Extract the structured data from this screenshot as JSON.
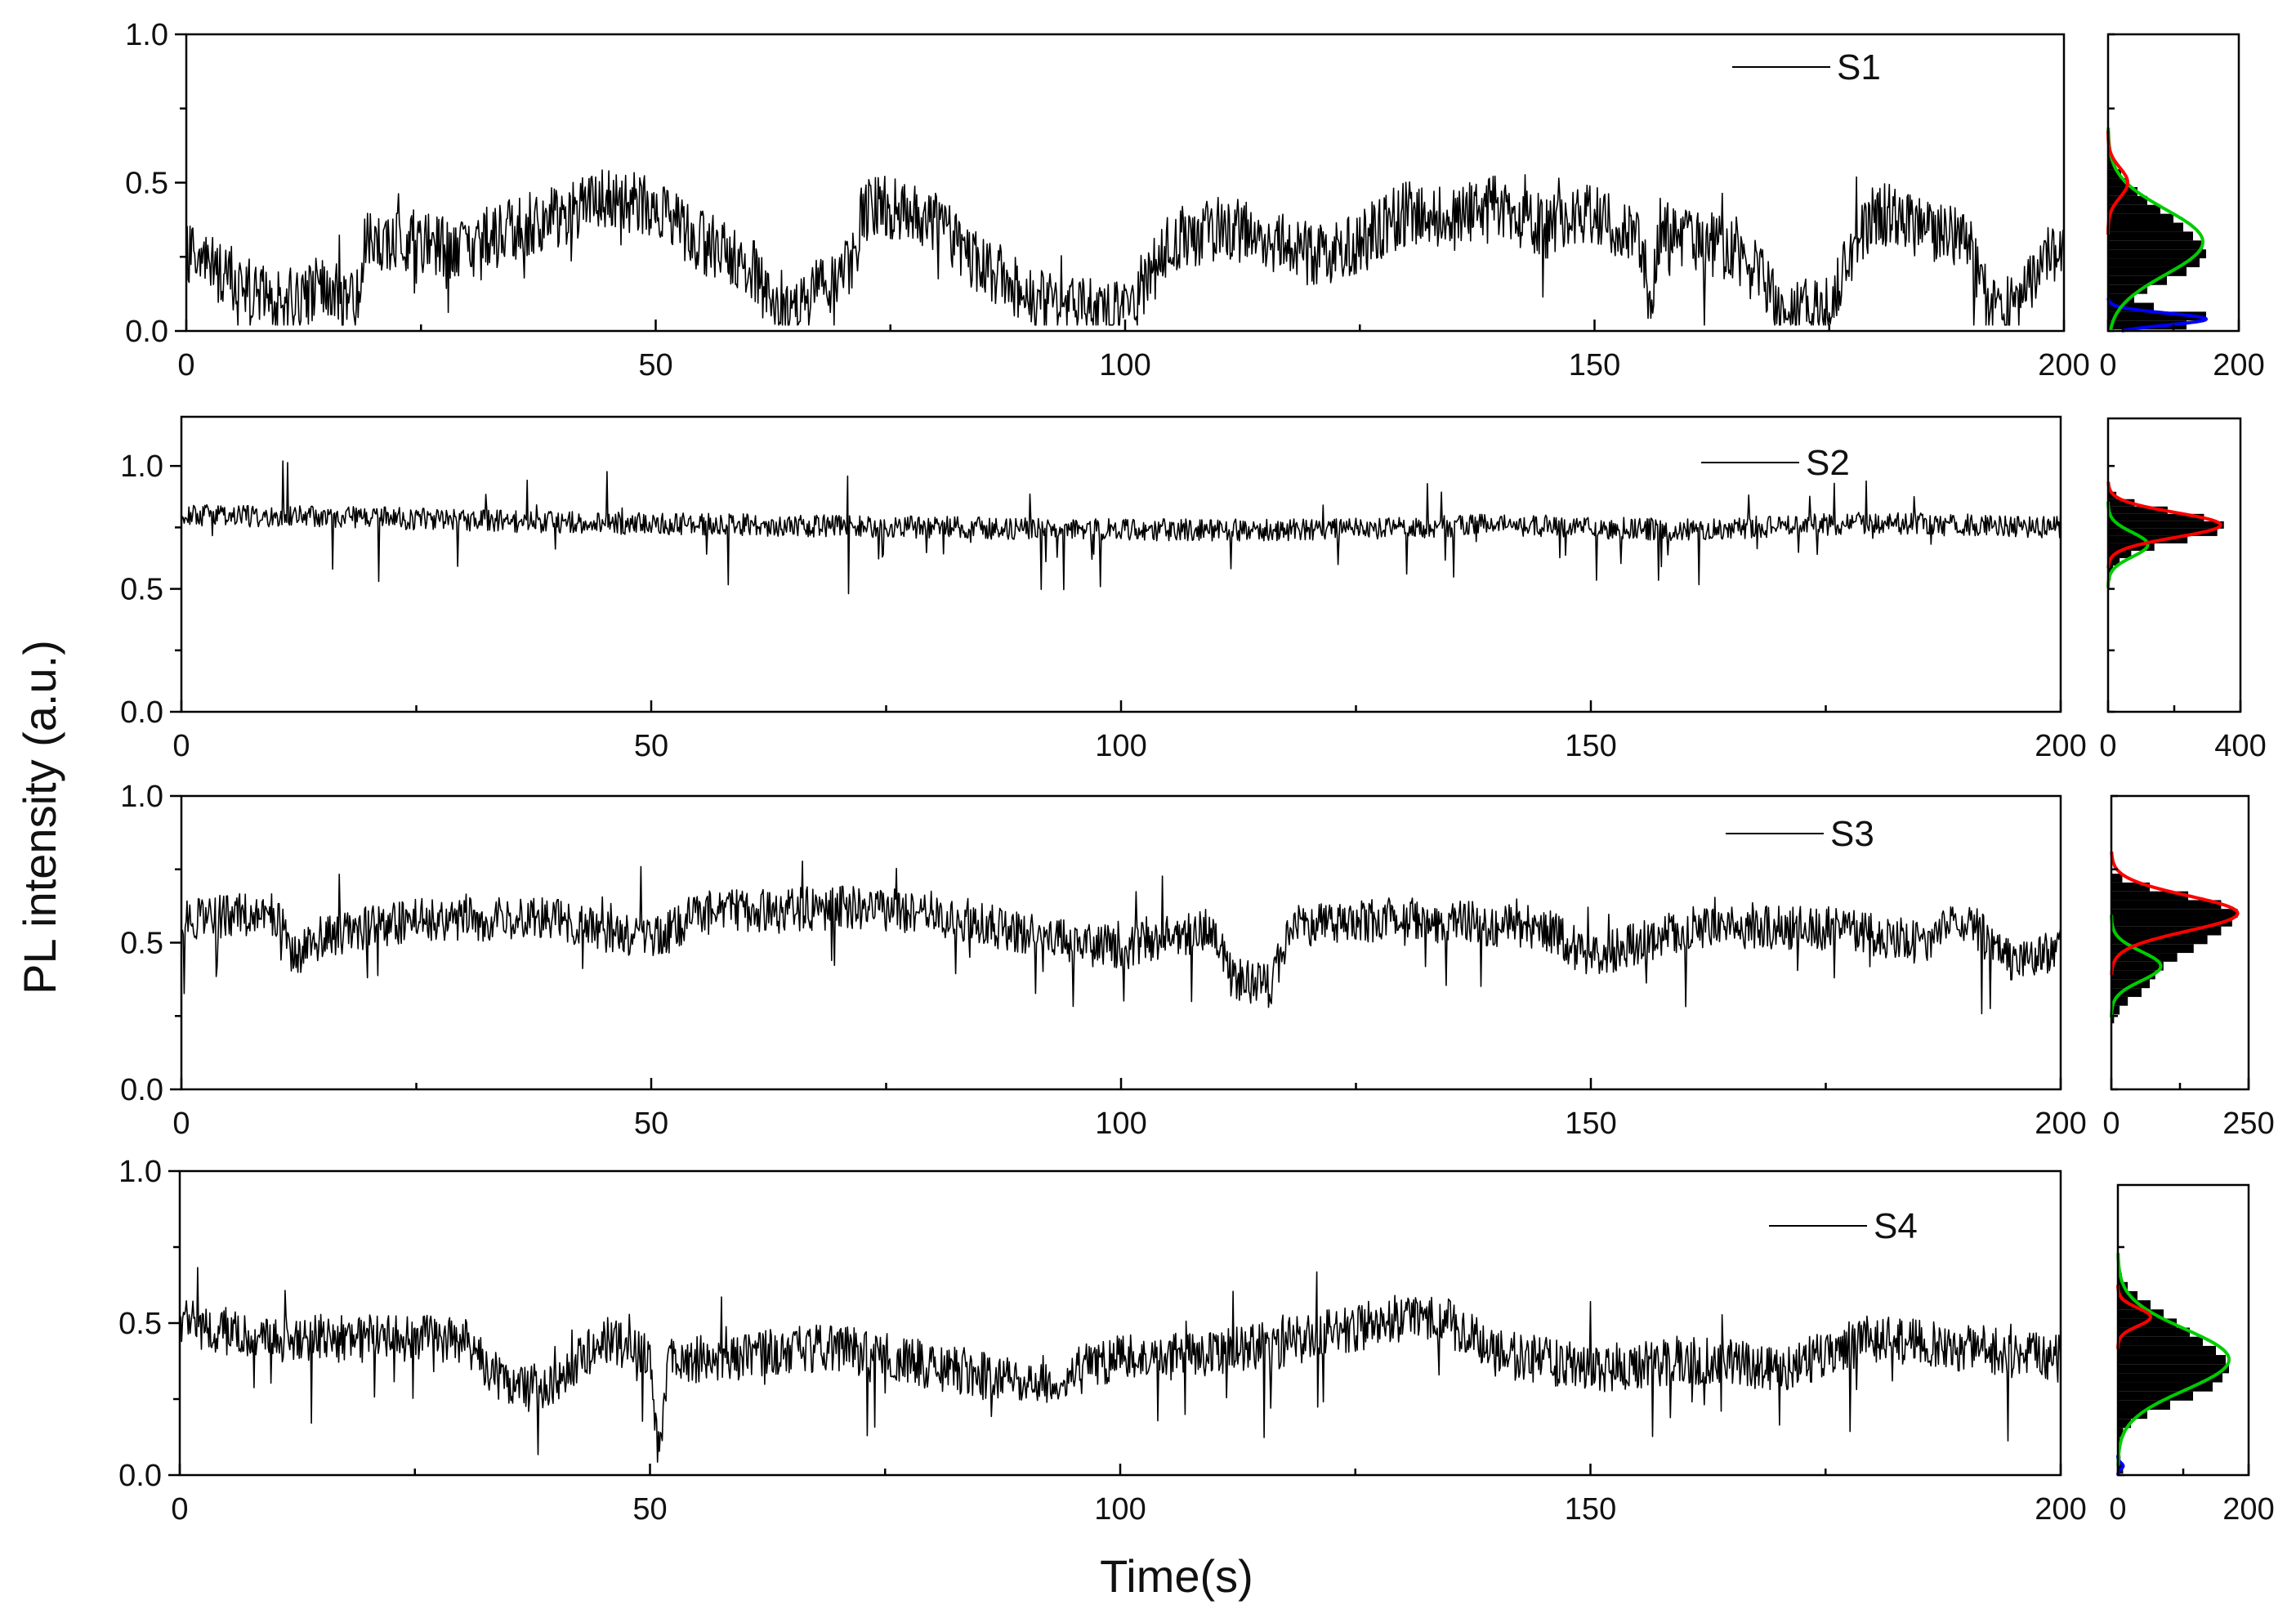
{
  "figure": {
    "ylabel": "PL intensity (a.u.)",
    "xlabel": "Time(s)"
  },
  "chart_data": [
    {
      "type": "line",
      "name": "S1",
      "xlim": [
        0,
        200
      ],
      "ylim": [
        0,
        1.0
      ],
      "xticks": [
        0,
        50,
        100,
        150,
        200
      ],
      "yticks": [
        0.0,
        0.5,
        1.0
      ],
      "ytick_labels": [
        "0.0",
        "0.5",
        "1.0"
      ],
      "legend": "S1",
      "trace_profile": {
        "x": [
          0,
          5,
          10,
          15,
          18,
          19,
          25,
          30,
          35,
          40,
          45,
          50,
          55,
          60,
          62,
          65,
          68,
          71,
          72,
          75,
          80,
          85,
          90,
          95,
          100,
          105,
          110,
          115,
          120,
          125,
          130,
          135,
          140,
          145,
          150,
          155,
          156,
          157,
          160,
          165,
          170,
          175,
          178,
          180,
          185,
          190,
          192,
          195,
          198,
          200
        ],
        "y": [
          0.25,
          0.18,
          0.1,
          0.15,
          0.08,
          0.32,
          0.3,
          0.28,
          0.35,
          0.38,
          0.45,
          0.42,
          0.3,
          0.22,
          0.12,
          0.08,
          0.15,
          0.22,
          0.4,
          0.42,
          0.35,
          0.22,
          0.12,
          0.08,
          0.05,
          0.3,
          0.35,
          0.32,
          0.25,
          0.3,
          0.4,
          0.38,
          0.42,
          0.35,
          0.4,
          0.3,
          0.05,
          0.35,
          0.3,
          0.28,
          0.08,
          0.08,
          0.3,
          0.4,
          0.35,
          0.3,
          0.08,
          0.08,
          0.25,
          0.3
        ],
        "noise": 0.11
      },
      "histogram": {
        "xlim": [
          0,
          200
        ],
        "xticks": [
          0,
          200
        ],
        "bins": [
          0.02,
          0.05,
          0.08,
          0.11,
          0.14,
          0.17,
          0.2,
          0.23,
          0.26,
          0.29,
          0.32,
          0.35,
          0.38,
          0.41,
          0.44,
          0.47,
          0.5,
          0.53,
          0.56,
          0.59,
          0.62
        ],
        "counts": [
          120,
          150,
          70,
          40,
          60,
          90,
          120,
          140,
          150,
          145,
          130,
          115,
          100,
          80,
          60,
          45,
          30,
          20,
          12,
          6,
          2
        ],
        "fits": [
          {
            "color": "#0000ff",
            "mu": 0.04,
            "sigma": 0.02,
            "amp": 150
          },
          {
            "color": "#00cc00",
            "mu": 0.3,
            "sigma": 0.11,
            "amp": 145
          },
          {
            "color": "#ff0000",
            "mu": 0.5,
            "sigma": 0.05,
            "amp": 30
          }
        ]
      }
    },
    {
      "type": "line",
      "name": "S2",
      "xlim": [
        0,
        200
      ],
      "ylim": [
        0,
        1.2
      ],
      "xticks": [
        0,
        50,
        100,
        150,
        200
      ],
      "yticks": [
        0.0,
        0.5,
        1.0
      ],
      "ytick_labels": [
        "0.0",
        "0.5",
        "1.0"
      ],
      "legend": "S2",
      "trace_profile": {
        "x": [
          0,
          20,
          40,
          60,
          80,
          100,
          120,
          140,
          160,
          180,
          200
        ],
        "y": [
          0.8,
          0.79,
          0.77,
          0.76,
          0.75,
          0.74,
          0.74,
          0.76,
          0.74,
          0.77,
          0.75
        ],
        "noise": 0.045
      },
      "histogram": {
        "xlim": [
          0,
          400
        ],
        "xticks": [
          0,
          400
        ],
        "bins": [
          0.55,
          0.58,
          0.61,
          0.64,
          0.67,
          0.7,
          0.73,
          0.76,
          0.79,
          0.82,
          0.85,
          0.88,
          0.91
        ],
        "counts": [
          8,
          15,
          35,
          70,
          140,
          240,
          330,
          350,
          290,
          180,
          80,
          25,
          6
        ],
        "fits": [
          {
            "color": "#00cc00",
            "mu": 0.68,
            "sigma": 0.05,
            "amp": 120
          },
          {
            "color": "#ff0000",
            "mu": 0.76,
            "sigma": 0.05,
            "amp": 340
          }
        ]
      }
    },
    {
      "type": "line",
      "name": "S3",
      "xlim": [
        0,
        200
      ],
      "ylim": [
        0,
        1.0
      ],
      "xticks": [
        0,
        50,
        100,
        150,
        200
      ],
      "yticks": [
        0.0,
        0.5,
        1.0
      ],
      "ytick_labels": [
        "0.0",
        "0.5",
        "1.0"
      ],
      "legend": "S3",
      "trace_profile": {
        "x": [
          0,
          10,
          12,
          15,
          25,
          40,
          50,
          55,
          70,
          80,
          95,
          100,
          110,
          112,
          116,
          118,
          130,
          145,
          150,
          160,
          175,
          185,
          190,
          195,
          200
        ],
        "y": [
          0.58,
          0.6,
          0.45,
          0.52,
          0.58,
          0.58,
          0.5,
          0.6,
          0.62,
          0.6,
          0.5,
          0.48,
          0.55,
          0.38,
          0.35,
          0.56,
          0.58,
          0.55,
          0.45,
          0.55,
          0.55,
          0.5,
          0.58,
          0.42,
          0.48
        ],
        "noise": 0.075
      },
      "histogram": {
        "xlim": [
          0,
          250
        ],
        "xticks": [
          0,
          250
        ],
        "bins": [
          0.24,
          0.27,
          0.3,
          0.33,
          0.36,
          0.39,
          0.42,
          0.45,
          0.48,
          0.51,
          0.54,
          0.57,
          0.6,
          0.63,
          0.66,
          0.69,
          0.72
        ],
        "counts": [
          5,
          15,
          30,
          55,
          70,
          80,
          95,
          120,
          150,
          175,
          200,
          220,
          230,
          200,
          140,
          70,
          20
        ],
        "fits": [
          {
            "color": "#00cc00",
            "mu": 0.42,
            "sigma": 0.05,
            "amp": 90
          },
          {
            "color": "#ff0000",
            "mu": 0.6,
            "sigma": 0.06,
            "amp": 230
          }
        ]
      }
    },
    {
      "type": "line",
      "name": "S4",
      "xlim": [
        0,
        200
      ],
      "ylim": [
        0,
        1.0
      ],
      "xticks": [
        0,
        50,
        100,
        150,
        200
      ],
      "yticks": [
        0.0,
        0.5,
        1.0
      ],
      "ytick_labels": [
        "0.0",
        "0.5",
        "1.0"
      ],
      "legend": "S4",
      "trace_profile": {
        "x": [
          0,
          10,
          20,
          30,
          35,
          40,
          45,
          50,
          51,
          52,
          55,
          70,
          90,
          100,
          110,
          120,
          130,
          135,
          140,
          150,
          160,
          170,
          180,
          190,
          200
        ],
        "y": [
          0.5,
          0.45,
          0.45,
          0.45,
          0.28,
          0.3,
          0.45,
          0.4,
          0.03,
          0.4,
          0.38,
          0.42,
          0.3,
          0.38,
          0.4,
          0.45,
          0.52,
          0.5,
          0.4,
          0.35,
          0.38,
          0.35,
          0.45,
          0.42,
          0.38
        ],
        "noise": 0.08
      },
      "histogram": {
        "xlim": [
          0,
          200
        ],
        "xticks": [
          0,
          200
        ],
        "bins": [
          0.02,
          0.05,
          0.08,
          0.11,
          0.14,
          0.17,
          0.2,
          0.23,
          0.26,
          0.29,
          0.32,
          0.35,
          0.38,
          0.41,
          0.44,
          0.47,
          0.5,
          0.53,
          0.56,
          0.59,
          0.62,
          0.65
        ],
        "counts": [
          8,
          4,
          2,
          3,
          8,
          20,
          45,
          80,
          115,
          145,
          160,
          170,
          165,
          150,
          130,
          110,
          90,
          70,
          50,
          30,
          15,
          6
        ],
        "fits": [
          {
            "color": "#0000ff",
            "mu": 0.03,
            "sigma": 0.01,
            "amp": 8
          },
          {
            "color": "#00cc00",
            "mu": 0.38,
            "sigma": 0.1,
            "amp": 170
          },
          {
            "color": "#ff0000",
            "mu": 0.52,
            "sigma": 0.03,
            "amp": 50
          }
        ]
      }
    }
  ]
}
